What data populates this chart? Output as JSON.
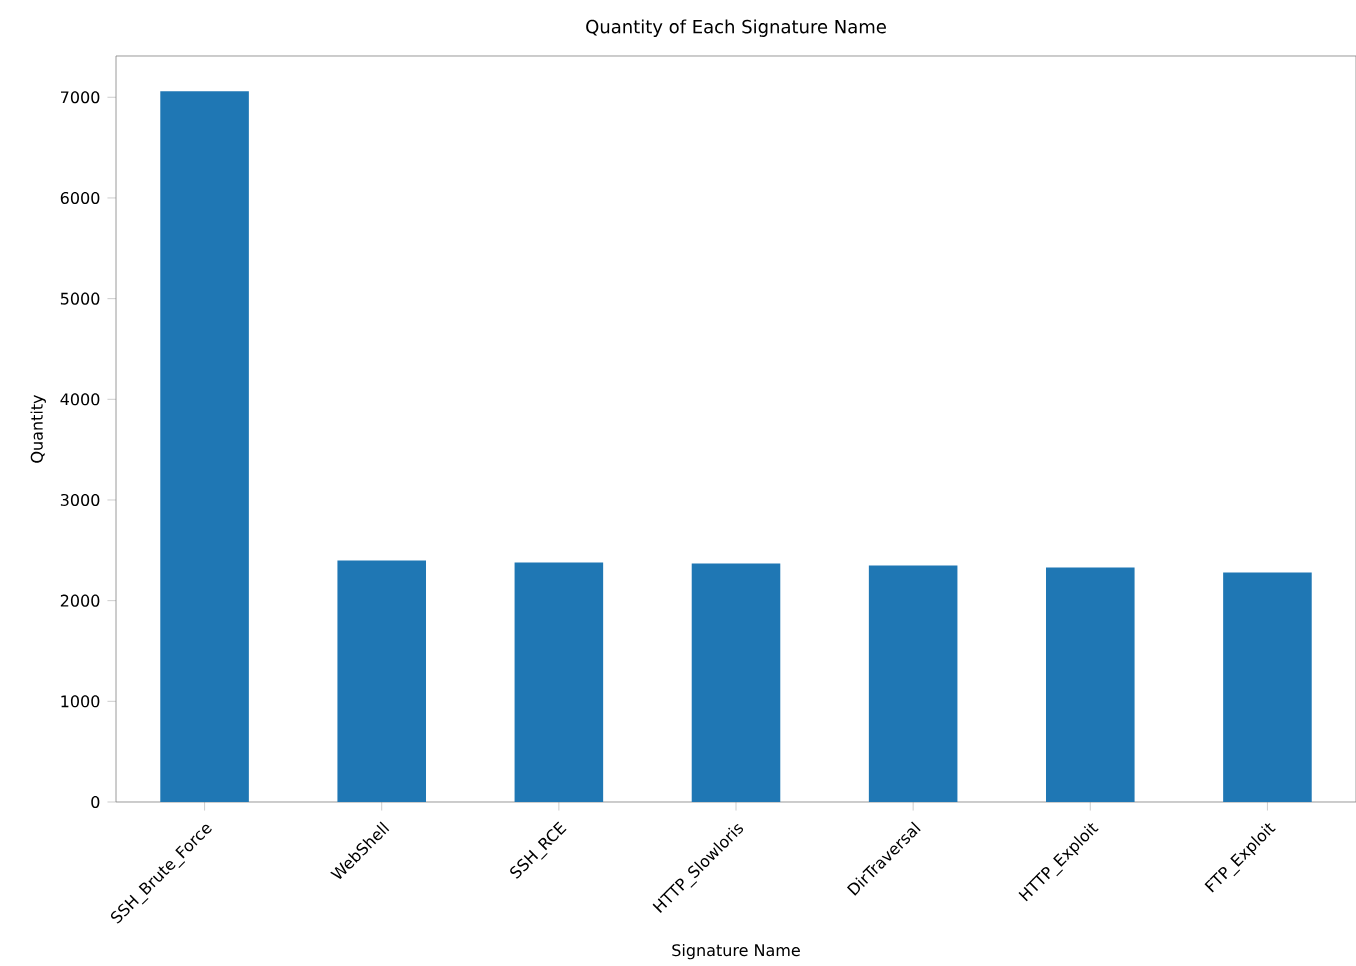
{
  "chart_data": {
    "type": "bar",
    "title": "Quantity of Each Signature Name",
    "xlabel": "Signature Name",
    "ylabel": "Quantity",
    "categories": [
      "SSH_Brute_Force",
      "WebShell",
      "SSH_RCE",
      "HTTP_Slowloris",
      "DirTraversal",
      "HTTP_Exploit",
      "FTP_Exploit"
    ],
    "values": [
      7060,
      2400,
      2380,
      2370,
      2350,
      2330,
      2280
    ],
    "color": "#1f77b4",
    "ylim": [
      0,
      7410
    ],
    "yticks": [
      0,
      1000,
      2000,
      3000,
      4000,
      5000,
      6000,
      7000
    ],
    "grid": false
  }
}
